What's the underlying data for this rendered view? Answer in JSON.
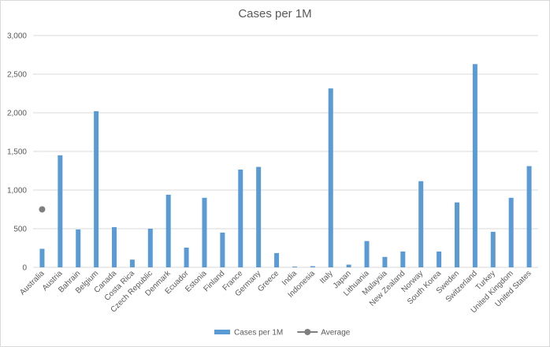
{
  "chart_data": {
    "type": "bar",
    "title": "Cases per 1M",
    "categories": [
      "Australia",
      "Austria",
      "Bahrain",
      "Belgium",
      "Canada",
      "Costa Rica",
      "Czech Republic",
      "Denmark",
      "Ecuador",
      "Estonia",
      "Finland",
      "France",
      "Germany",
      "Greece",
      "India",
      "Indonesia",
      "Italy",
      "Japan",
      "Lithuania",
      "Malaysia",
      "New Zealand",
      "Norway",
      "South Korea",
      "Sweden",
      "Switzerland",
      "Turkey",
      "United Kingdom",
      "United States"
    ],
    "series": [
      {
        "name": "Cases per 1M",
        "type": "bar",
        "color": "#5b9bd5",
        "values": [
          240,
          1450,
          490,
          2020,
          520,
          100,
          500,
          940,
          255,
          900,
          450,
          1265,
          1300,
          185,
          10,
          15,
          2315,
          35,
          340,
          135,
          205,
          1115,
          205,
          840,
          2630,
          460,
          900,
          1310
        ]
      },
      {
        "name": "Average",
        "type": "line",
        "color": "#7f7f7f",
        "values": [
          750,
          null,
          null,
          null,
          null,
          null,
          null,
          null,
          null,
          null,
          null,
          null,
          null,
          null,
          null,
          null,
          null,
          null,
          null,
          null,
          null,
          null,
          null,
          null,
          null,
          null,
          null,
          null
        ]
      }
    ],
    "ylim": [
      0,
      3000
    ],
    "yticks": [
      0,
      500,
      {
        "value": 1000,
        "label": "1,000"
      },
      {
        "value": 1500,
        "label": "1,500"
      },
      {
        "value": 2000,
        "label": "2,000"
      },
      {
        "value": 2500,
        "label": "2,500"
      },
      {
        "value": 3000,
        "label": "3,000"
      }
    ],
    "grid": true,
    "legend": "bottom"
  }
}
